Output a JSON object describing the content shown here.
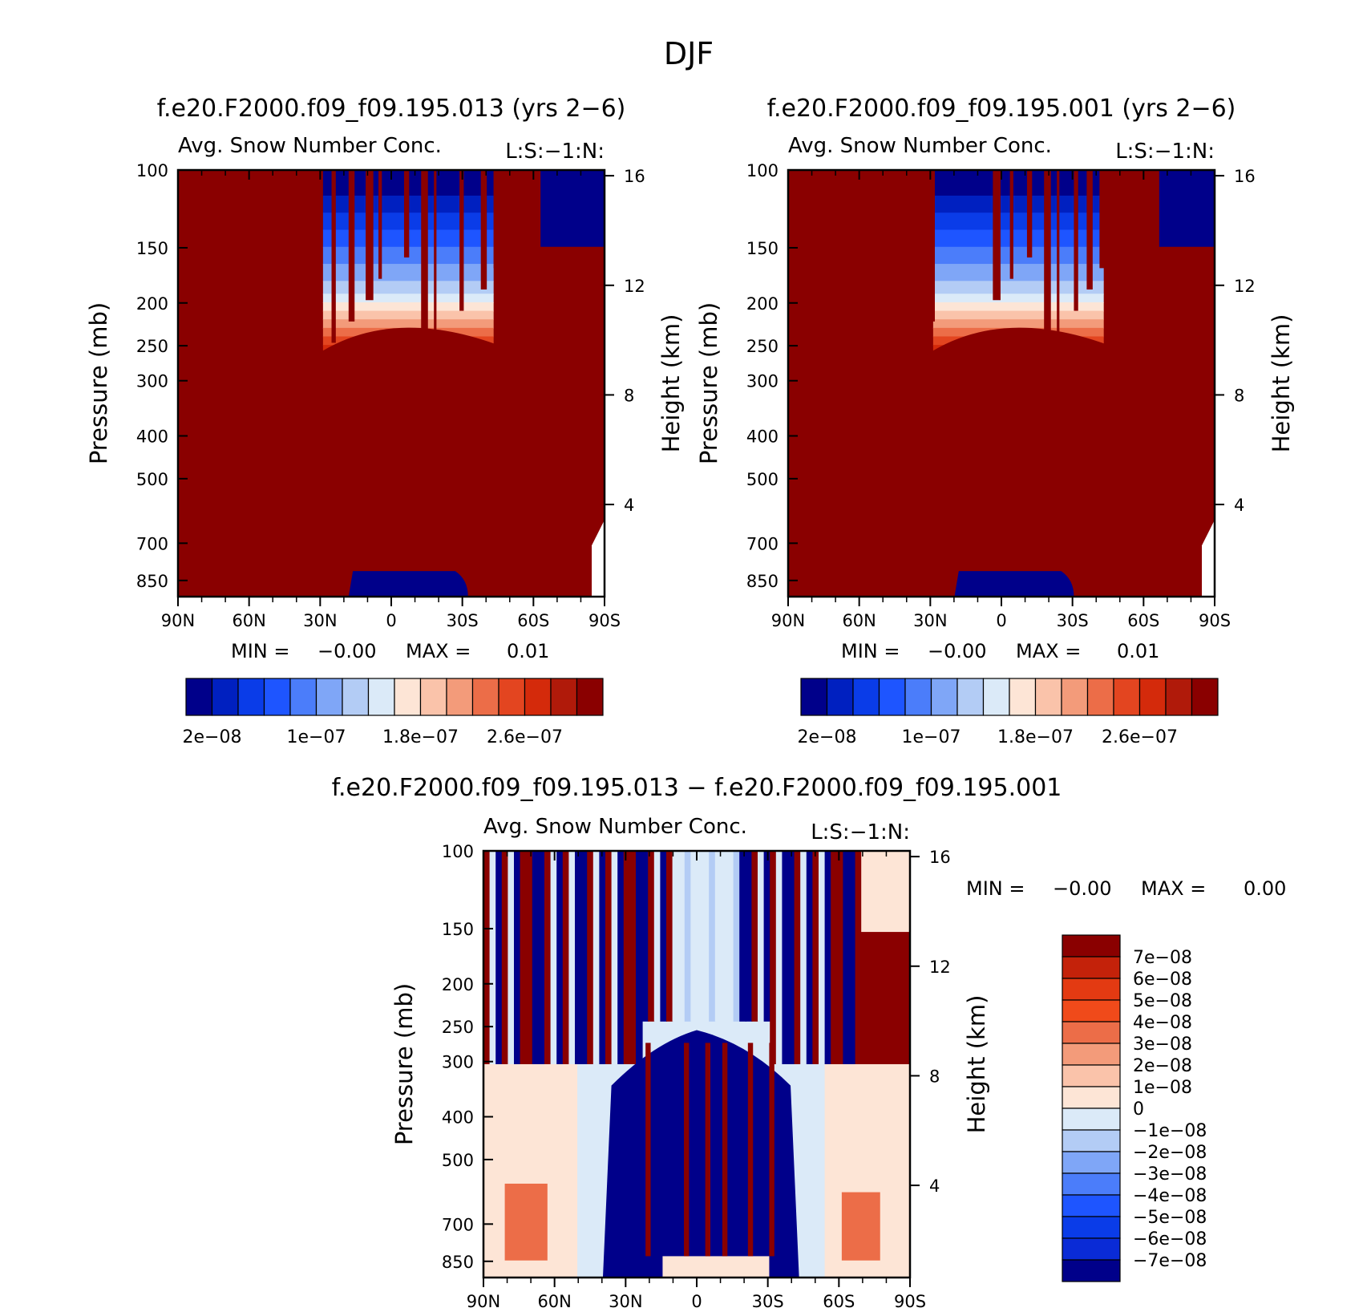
{
  "figure": {
    "title": "DJF",
    "colors": {
      "top_palette": [
        "#00008a",
        "#0020c0",
        "#0a3ce8",
        "#1e55ff",
        "#4b7dfa",
        "#7fa6f7",
        "#b3ccf5",
        "#dbeaf8",
        "#fde5d6",
        "#fac3aa",
        "#f39b7a",
        "#ec6d48",
        "#e34520",
        "#d42a0b",
        "#b01a0a",
        "#8a0000"
      ],
      "diff_palette": [
        "#00008a",
        "#0a2bd6",
        "#0a3ce8",
        "#1e55ff",
        "#4b7dfa",
        "#7fa6f7",
        "#b3ccf5",
        "#dbeaf8",
        "#fde5d6",
        "#fac3aa",
        "#f39b7a",
        "#ec6d48",
        "#f04a1a",
        "#e33a12",
        "#c4220a",
        "#8a0000"
      ]
    }
  },
  "chart_data": [
    {
      "type": "heatmap",
      "title": "f.e20.F2000.f09_f09.195.013 (yrs 2-6)",
      "subtitle": "Avg. Snow Number Conc.",
      "subtitle_right": "L:S:-1:N:",
      "xlabel": "",
      "ylabel": "Pressure (mb)",
      "ylabel_right": "Height (km)",
      "x_ticks": [
        "90N",
        "60N",
        "30N",
        "0",
        "30S",
        "60S",
        "90S"
      ],
      "y_ticks": [
        100,
        150,
        200,
        250,
        300,
        400,
        500,
        700,
        850
      ],
      "y_right_ticks": [
        16,
        12,
        8,
        4
      ],
      "y_scale": "log pressure",
      "ylim": [
        100,
        925
      ],
      "min_label": "MIN =",
      "min_value": "-0.00",
      "max_label": "MAX =",
      "max_value": "0.01",
      "colorbar_ticks": [
        "2e-08",
        "1e-07",
        "1.8e-07",
        "2.6e-07"
      ]
    },
    {
      "type": "heatmap",
      "title": "f.e20.F2000.f09_f09.195.001 (yrs 2-6)",
      "subtitle": "Avg. Snow Number Conc.",
      "subtitle_right": "L:S:-1:N:",
      "xlabel": "",
      "ylabel": "Pressure (mb)",
      "ylabel_right": "Height (km)",
      "x_ticks": [
        "90N",
        "60N",
        "30N",
        "0",
        "30S",
        "60S",
        "90S"
      ],
      "y_ticks": [
        100,
        150,
        200,
        250,
        300,
        400,
        500,
        700,
        850
      ],
      "y_right_ticks": [
        16,
        12,
        8,
        4
      ],
      "y_scale": "log pressure",
      "ylim": [
        100,
        925
      ],
      "min_label": "MIN =",
      "min_value": "-0.00",
      "max_label": "MAX =",
      "max_value": "0.01",
      "colorbar_ticks": [
        "2e-08",
        "1e-07",
        "1.8e-07",
        "2.6e-07"
      ]
    },
    {
      "type": "heatmap",
      "title": "f.e20.F2000.f09_f09.195.013 - f.e20.F2000.f09_f09.195.001",
      "subtitle": "Avg. Snow Number Conc.",
      "subtitle_right": "L:S:-1:N:",
      "xlabel": "",
      "ylabel": "Pressure (mb)",
      "ylabel_right": "Height (km)",
      "x_ticks": [
        "90N",
        "60N",
        "30N",
        "0",
        "30S",
        "60S",
        "90S"
      ],
      "y_ticks": [
        100,
        150,
        200,
        250,
        300,
        400,
        500,
        700,
        850
      ],
      "y_right_ticks": [
        16,
        12,
        8,
        4
      ],
      "y_scale": "log pressure",
      "ylim": [
        100,
        925
      ],
      "min_label": "MIN =",
      "min_value": "-0.00",
      "max_label": "MAX =",
      "max_value": "0.00",
      "colorbar_labels": [
        "7e-08",
        "6e-08",
        "5e-08",
        "4e-08",
        "3e-08",
        "2e-08",
        "1e-08",
        "0",
        "-1e-08",
        "-2e-08",
        "-3e-08",
        "-4e-08",
        "-5e-08",
        "-6e-08",
        "-7e-08"
      ]
    }
  ]
}
